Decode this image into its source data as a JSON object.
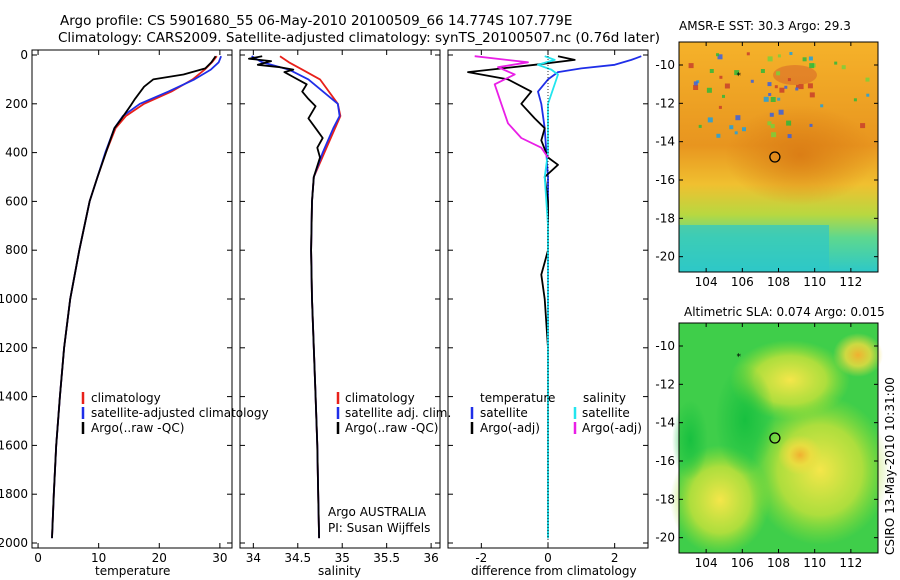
{
  "figure": {
    "title_line1": "Argo profile: CS 5901680_55 06-May-2010 20100509_66 14.774S 107.779E",
    "title_line2": "Climatology: CARS2009. Satellite-adjusted climatology: synTS_20100507.nc (0.76d later)",
    "side_label": "CSIRO 13-May-2010 10:31:00",
    "annotation_agency": "Argo AUSTRALIA",
    "annotation_pi": "PI: Susan Wijffels"
  },
  "colors": {
    "climatology": "#e8201a",
    "satellite": "#1f2ee8",
    "argo": "#000000",
    "satellite_salinity": "#22e5ee",
    "argo_salinity": "#e91fe6"
  },
  "chart_data": [
    {
      "type": "line",
      "xlabel": "temperature",
      "ylabel": "",
      "xlim": [
        -1,
        32
      ],
      "ylim": [
        2000,
        0
      ],
      "xticks": [
        "0",
        "10",
        "20",
        "30"
      ],
      "yticks": [
        "0",
        "200",
        "400",
        "600",
        "800",
        "1000",
        "1200",
        "1400",
        "1600",
        "1800",
        "2000"
      ],
      "legend": [
        {
          "key": "climatology",
          "label": "climatology"
        },
        {
          "key": "satellite",
          "label": "satellite-adjusted climatology"
        },
        {
          "key": "argo",
          "label": "Argo(..raw -QC)"
        }
      ],
      "series": [
        {
          "name": "climatology",
          "color_key": "climatology",
          "points": [
            [
              29.5,
              5
            ],
            [
              28.7,
              30
            ],
            [
              27.5,
              60
            ],
            [
              25.5,
              100
            ],
            [
              22.0,
              150
            ],
            [
              17.5,
              200
            ],
            [
              14.5,
              250
            ],
            [
              12.8,
              300
            ],
            [
              11.2,
              400
            ],
            [
              9.8,
              500
            ],
            [
              8.5,
              600
            ],
            [
              6.8,
              800
            ],
            [
              5.3,
              1000
            ],
            [
              4.3,
              1200
            ],
            [
              3.6,
              1400
            ],
            [
              3.0,
              1600
            ],
            [
              2.6,
              1800
            ],
            [
              2.3,
              1980
            ]
          ]
        },
        {
          "name": "satellite-adjusted climatology",
          "color_key": "satellite",
          "points": [
            [
              30.2,
              5
            ],
            [
              29.8,
              30
            ],
            [
              28.5,
              60
            ],
            [
              25.8,
              100
            ],
            [
              21.5,
              150
            ],
            [
              16.8,
              200
            ],
            [
              14.0,
              250
            ],
            [
              12.6,
              300
            ],
            [
              11.1,
              400
            ],
            [
              9.8,
              500
            ],
            [
              8.5,
              600
            ],
            [
              6.8,
              800
            ],
            [
              5.3,
              1000
            ],
            [
              4.3,
              1200
            ],
            [
              3.6,
              1400
            ],
            [
              3.0,
              1600
            ],
            [
              2.6,
              1800
            ],
            [
              2.3,
              1980
            ]
          ]
        },
        {
          "name": "Argo(..raw -QC)",
          "color_key": "argo",
          "points": [
            [
              29.3,
              5
            ],
            [
              28.6,
              30
            ],
            [
              27.6,
              55
            ],
            [
              24.0,
              80
            ],
            [
              19.0,
              100
            ],
            [
              17.5,
              130
            ],
            [
              16.0,
              180
            ],
            [
              15.2,
              210
            ],
            [
              13.8,
              260
            ],
            [
              12.6,
              300
            ],
            [
              11.2,
              400
            ],
            [
              9.8,
              500
            ],
            [
              8.5,
              600
            ],
            [
              6.8,
              800
            ],
            [
              5.3,
              1000
            ],
            [
              4.3,
              1200
            ],
            [
              3.6,
              1400
            ],
            [
              3.0,
              1600
            ],
            [
              2.6,
              1800
            ],
            [
              2.3,
              1980
            ]
          ]
        }
      ]
    },
    {
      "type": "line",
      "xlabel": "salinity",
      "ylabel": "",
      "xlim": [
        33.85,
        36.1
      ],
      "ylim": [
        2000,
        0
      ],
      "xticks": [
        "34",
        "34.5",
        "35",
        "35.5",
        "36"
      ],
      "legend": [
        {
          "key": "climatology",
          "label": "climatology"
        },
        {
          "key": "satellite",
          "label": "satellite adj. clim."
        },
        {
          "key": "argo",
          "label": "Argo(..raw -QC)"
        }
      ],
      "series": [
        {
          "name": "climatology",
          "color_key": "climatology",
          "points": [
            [
              34.3,
              5
            ],
            [
              34.4,
              30
            ],
            [
              34.55,
              60
            ],
            [
              34.75,
              100
            ],
            [
              34.95,
              200
            ],
            [
              34.98,
              250
            ],
            [
              34.92,
              300
            ],
            [
              34.8,
              400
            ],
            [
              34.68,
              500
            ],
            [
              34.66,
              600
            ],
            [
              34.65,
              800
            ],
            [
              34.66,
              1000
            ],
            [
              34.68,
              1200
            ],
            [
              34.7,
              1400
            ],
            [
              34.72,
              1600
            ],
            [
              34.73,
              1800
            ],
            [
              34.74,
              1980
            ]
          ]
        },
        {
          "name": "satellite adj. clim.",
          "color_key": "satellite",
          "points": [
            [
              33.98,
              5
            ],
            [
              34.1,
              30
            ],
            [
              34.4,
              60
            ],
            [
              34.62,
              100
            ],
            [
              34.95,
              200
            ],
            [
              34.97,
              250
            ],
            [
              34.9,
              300
            ],
            [
              34.78,
              400
            ],
            [
              34.68,
              500
            ],
            [
              34.66,
              600
            ],
            [
              34.65,
              800
            ],
            [
              34.66,
              1000
            ],
            [
              34.68,
              1200
            ],
            [
              34.7,
              1400
            ],
            [
              34.72,
              1600
            ],
            [
              34.73,
              1800
            ],
            [
              34.74,
              1980
            ]
          ]
        },
        {
          "name": "Argo(..raw -QC)",
          "color_key": "argo",
          "points": [
            [
              34.1,
              5
            ],
            [
              33.95,
              15
            ],
            [
              34.2,
              25
            ],
            [
              34.05,
              40
            ],
            [
              34.3,
              50
            ],
            [
              34.45,
              60
            ],
            [
              34.35,
              70
            ],
            [
              34.45,
              90
            ],
            [
              34.6,
              120
            ],
            [
              34.55,
              150
            ],
            [
              34.62,
              180
            ],
            [
              34.7,
              210
            ],
            [
              34.62,
              260
            ],
            [
              34.7,
              300
            ],
            [
              34.78,
              340
            ],
            [
              34.72,
              380
            ],
            [
              34.75,
              420
            ],
            [
              34.68,
              500
            ],
            [
              34.66,
              600
            ],
            [
              34.65,
              800
            ],
            [
              34.66,
              1000
            ],
            [
              34.68,
              1200
            ],
            [
              34.7,
              1400
            ],
            [
              34.72,
              1600
            ],
            [
              34.73,
              1800
            ],
            [
              34.74,
              1980
            ]
          ]
        }
      ]
    },
    {
      "type": "line",
      "xlabel": "difference from climatology",
      "ylabel": "",
      "xlim": [
        -3,
        3
      ],
      "ylim": [
        2000,
        0
      ],
      "xticks": [
        "-2",
        "0",
        "2"
      ],
      "legend_temperature_title": "temperature",
      "legend_salinity_title": "salinity",
      "legend": [
        {
          "key": "satellite",
          "label": "satellite"
        },
        {
          "key": "argo",
          "label": "Argo(-adj)"
        },
        {
          "key": "satellite_salinity",
          "label": "satellite"
        },
        {
          "key": "argo_salinity",
          "label": "Argo(-adj)"
        }
      ],
      "series": [
        {
          "name": "temperature satellite",
          "color_key": "satellite",
          "points": [
            [
              2.8,
              5
            ],
            [
              2.5,
              20
            ],
            [
              2.0,
              40
            ],
            [
              1.0,
              55
            ],
            [
              0.3,
              70
            ],
            [
              0.0,
              100
            ],
            [
              -0.3,
              150
            ],
            [
              -0.2,
              200
            ],
            [
              -0.1,
              300
            ],
            [
              0.0,
              500
            ],
            [
              0.0,
              1000
            ],
            [
              0.0,
              1980
            ]
          ]
        },
        {
          "name": "temperature Argo(-adj)",
          "color_key": "argo",
          "points": [
            [
              0.3,
              5
            ],
            [
              0.8,
              20
            ],
            [
              -0.4,
              40
            ],
            [
              -2.4,
              70
            ],
            [
              -1.2,
              100
            ],
            [
              -0.5,
              150
            ],
            [
              -0.8,
              200
            ],
            [
              -0.4,
              260
            ],
            [
              -0.1,
              300
            ],
            [
              -0.2,
              350
            ],
            [
              0.0,
              420
            ],
            [
              0.3,
              450
            ],
            [
              -0.1,
              500
            ],
            [
              0.0,
              600
            ],
            [
              0.0,
              800
            ],
            [
              -0.1,
              850
            ],
            [
              -0.2,
              900
            ],
            [
              -0.1,
              1000
            ],
            [
              0.0,
              1200
            ],
            [
              0.0,
              1980
            ]
          ]
        },
        {
          "name": "salinity satellite",
          "color_key": "satellite_salinity",
          "points": [
            [
              -0.1,
              5
            ],
            [
              0.2,
              20
            ],
            [
              -0.3,
              40
            ],
            [
              0.1,
              60
            ],
            [
              0.3,
              80
            ],
            [
              0.0,
              200
            ],
            [
              0.0,
              400
            ],
            [
              -0.1,
              500
            ],
            [
              0.0,
              700
            ],
            [
              0.0,
              1200
            ],
            [
              0.0,
              1980
            ]
          ]
        },
        {
          "name": "salinity Argo(-adj)",
          "color_key": "argo_salinity",
          "points": [
            [
              -2.2,
              5
            ],
            [
              -0.6,
              30
            ],
            [
              -1.5,
              50
            ],
            [
              -1.0,
              80
            ],
            [
              -1.6,
              120
            ],
            [
              -1.4,
              200
            ],
            [
              -1.2,
              280
            ],
            [
              -0.8,
              340
            ],
            [
              -0.2,
              380
            ],
            [
              0.0,
              420
            ]
          ]
        }
      ]
    },
    {
      "type": "heatmap",
      "title": "AMSR-E SST: 30.3 Argo: 29.3",
      "xticks": [
        "104",
        "106",
        "108",
        "110",
        "112"
      ],
      "yticks": [
        "-10",
        "-12",
        "-14",
        "-16",
        "-18",
        "-20"
      ],
      "xlim": [
        102.5,
        113.5
      ],
      "ylim": [
        -20.8,
        -8.8
      ],
      "argo_position": [
        107.8,
        -14.8
      ],
      "marker_position": [
        105.8,
        -10.5
      ]
    },
    {
      "type": "heatmap",
      "title": "Altimetric SLA: 0.074 Argo: 0.015",
      "xticks": [
        "104",
        "106",
        "108",
        "110",
        "112"
      ],
      "yticks": [
        "-10",
        "-12",
        "-14",
        "-16",
        "-18",
        "-20"
      ],
      "xlim": [
        102.5,
        113.5
      ],
      "ylim": [
        -20.8,
        -8.8
      ],
      "argo_position": [
        107.8,
        -14.8
      ],
      "marker_position": [
        105.8,
        -10.5
      ]
    }
  ]
}
